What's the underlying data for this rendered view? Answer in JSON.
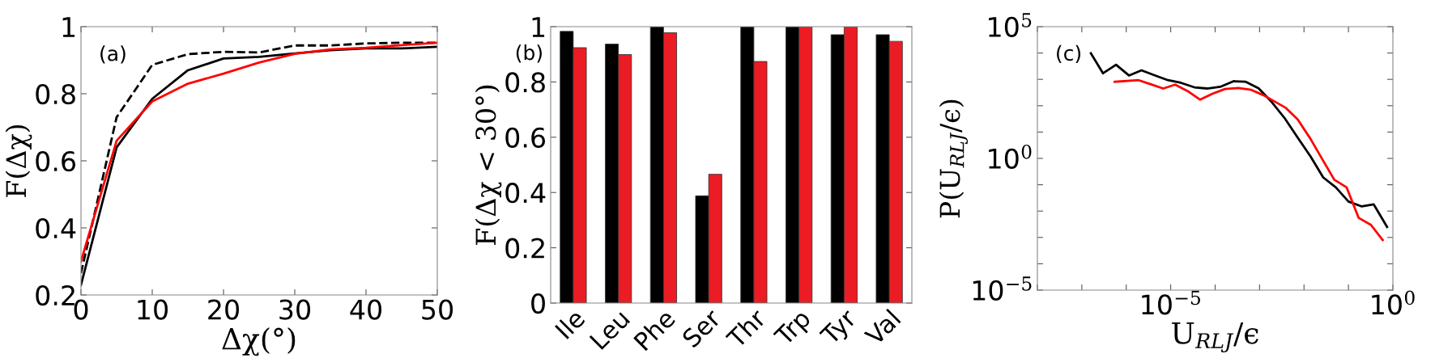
{
  "chart_data": [
    {
      "type": "line",
      "xlabel": "Δχ(°)",
      "ylabel": "F(Δχ)",
      "annotations": [
        "(a)"
      ],
      "x": [
        0,
        5,
        10,
        15,
        20,
        25,
        30,
        35,
        40,
        45,
        50
      ],
      "series": [
        {
          "color": "#000000",
          "line_style": "dashed",
          "values": [
            0.265,
            0.73,
            0.886,
            0.918,
            0.925,
            0.923,
            0.944,
            0.944,
            0.95,
            0.952,
            0.952
          ]
        },
        {
          "color": "#000000",
          "line_style": "solid",
          "values": [
            0.23,
            0.64,
            0.785,
            0.87,
            0.905,
            0.91,
            0.92,
            0.93,
            0.935,
            0.935,
            0.94
          ]
        },
        {
          "color": "#ff0000",
          "line_style": "solid",
          "values": [
            0.3,
            0.66,
            0.777,
            0.83,
            0.86,
            0.893,
            0.919,
            0.932,
            0.937,
            0.945,
            0.952
          ]
        }
      ],
      "xlim": [
        0,
        50
      ],
      "xticks": [
        0,
        10,
        20,
        30,
        40,
        50
      ],
      "ylim": [
        0.2,
        1
      ],
      "yticks": [
        0.2,
        0.4,
        0.6,
        0.8,
        1
      ],
      "grid": false,
      "legend": false
    },
    {
      "type": "bar",
      "ylabel": "F(Δχ < 30°)",
      "annotations": [
        "(b)"
      ],
      "categories": [
        "Ile",
        "Leu",
        "Phe",
        "Ser",
        "Thr",
        "Trp",
        "Tyr",
        "Val"
      ],
      "series": [
        {
          "color": "#000000",
          "values": [
            0.983,
            0.937,
            1.0,
            0.388,
            1.0,
            1.0,
            0.971,
            0.971
          ]
        },
        {
          "color": "#ec1c24",
          "values": [
            0.924,
            0.899,
            0.978,
            0.466,
            0.874,
            1.0,
            1.0,
            0.947
          ]
        }
      ],
      "ylim": [
        0,
        1
      ],
      "yticks": [
        0,
        0.2,
        0.4,
        0.6,
        0.8,
        1
      ],
      "grid": false,
      "legend": false
    },
    {
      "type": "line",
      "xlabel": "U$_{RLJ}$/ϵ",
      "ylabel": "P(U$_{RLJ}$/ϵ)",
      "annotations": [
        "(c)"
      ],
      "log": "xy",
      "series": [
        {
          "color": "#000000",
          "x": [
            1.6e-07,
            3e-07,
            5.9e-07,
            1.15e-06,
            2.2e-06,
            4.5e-06,
            8.7e-06,
            1.7e-05,
            3.4e-05,
            6.6e-05,
            0.00013,
            0.00026,
            0.00049,
            0.00095,
            0.0019,
            0.0037,
            0.0072,
            0.014,
            0.027,
            0.052,
            0.1,
            0.2,
            0.37,
            0.74
          ],
          "values": [
            9800,
            1700,
            3600,
            1400,
            2200,
            1400,
            930,
            740,
            500,
            450,
            520,
            850,
            810,
            460,
            135,
            33,
            6.2,
            1.2,
            0.19,
            0.079,
            0.023,
            0.015,
            0.018,
            0.0025
          ]
        },
        {
          "color": "#ff0000",
          "x": [
            5.5e-07,
            1.9e-06,
            3.5e-06,
            6.8e-06,
            1.26e-05,
            2.4e-05,
            4.6e-05,
            8.5e-05,
            0.000166,
            0.00033,
            0.00065,
            0.00126,
            0.0038,
            0.0072,
            0.014,
            0.026,
            0.048,
            0.091,
            0.17,
            0.32,
            0.59
          ],
          "values": [
            810,
            930,
            660,
            450,
            630,
            360,
            170,
            280,
            430,
            470,
            400,
            245,
            85,
            30,
            5.5,
            0.91,
            0.155,
            0.079,
            0.0055,
            0.003,
            0.0008
          ]
        }
      ],
      "xlim": [
        1e-08,
        1
      ],
      "xticks": [
        {
          "value": 1e-08,
          "label": null
        },
        {
          "value": 1e-07,
          "label": null
        },
        {
          "value": 1e-06,
          "label": null
        },
        {
          "value": 1e-05,
          "label": "10$^{−5}$"
        },
        {
          "value": 0.0001,
          "label": null
        },
        {
          "value": 0.001,
          "label": null
        },
        {
          "value": 0.01,
          "label": null
        },
        {
          "value": 0.1,
          "label": null
        },
        {
          "value": 1,
          "label": "10$^{0}$"
        }
      ],
      "ylim": [
        1e-05,
        100000.0
      ],
      "yticks": [
        {
          "value": 1e-05,
          "label": "10$^{−5}$"
        },
        {
          "value": 0.0001,
          "label": null
        },
        {
          "value": 0.001,
          "label": null
        },
        {
          "value": 0.01,
          "label": null
        },
        {
          "value": 0.1,
          "label": null
        },
        {
          "value": 1,
          "label": "10$^{0}$"
        },
        {
          "value": 10,
          "label": null
        },
        {
          "value": 100,
          "label": null
        },
        {
          "value": 1000,
          "label": null
        },
        {
          "value": 10000.0,
          "label": null
        },
        {
          "value": 100000.0,
          "label": "10$^{5}$"
        }
      ],
      "grid": false,
      "legend": false
    }
  ]
}
